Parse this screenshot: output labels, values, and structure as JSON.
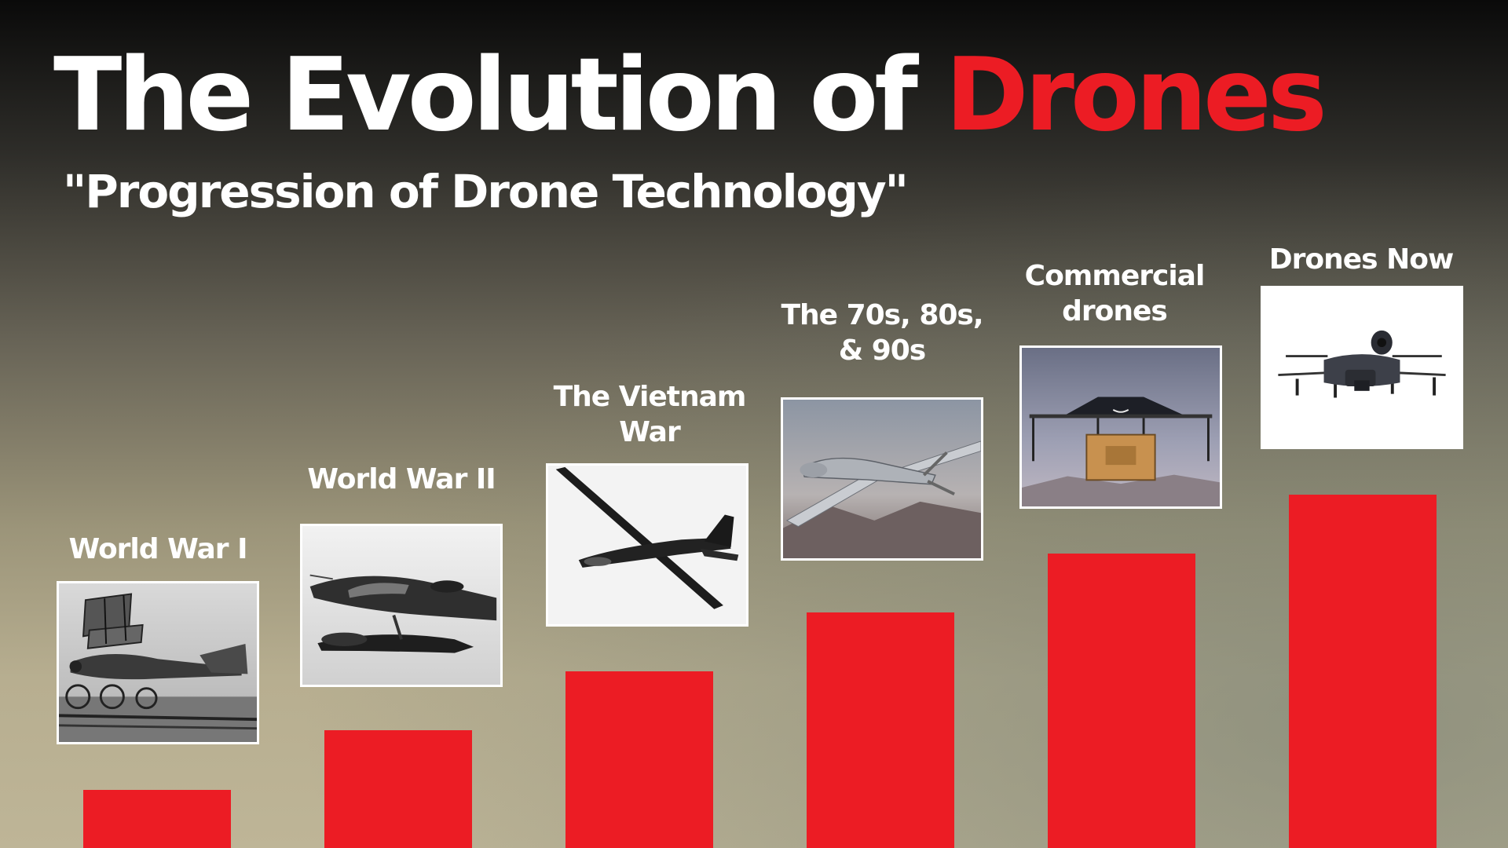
{
  "title": {
    "part1": "The Evolution of ",
    "part2": "Drones"
  },
  "subtitle": "\"Progression of Drone Technology\"",
  "colors": {
    "accent": "#ec1c24",
    "text": "#ffffff"
  },
  "chart_data": {
    "type": "bar",
    "categories": [
      "World War I",
      "World War II",
      "The Vietnam War",
      "The 70s, 80s, & 90s",
      "Commercial drones",
      "Drones Now"
    ],
    "values": [
      1,
      2,
      3,
      4,
      5,
      6
    ],
    "title": "The Evolution of Drones",
    "subtitle": "\"Progression of Drone Technology\"",
    "bar_color": "#ec1c24",
    "images": [
      "biplane-drone",
      "wwii-drone-aircraft",
      "high-altitude-glider",
      "predator-drone",
      "delivery-octocopter",
      "quadcopter-drone"
    ]
  },
  "labels": [
    {
      "line1": "World War I",
      "line2": ""
    },
    {
      "line1": "World War II",
      "line2": ""
    },
    {
      "line1": "The Vietnam",
      "line2": "War"
    },
    {
      "line1": "The 70s, 80s,",
      "line2": "& 90s"
    },
    {
      "line1": "Commercial",
      "line2": "drones"
    },
    {
      "line1": "Drones Now",
      "line2": ""
    }
  ]
}
